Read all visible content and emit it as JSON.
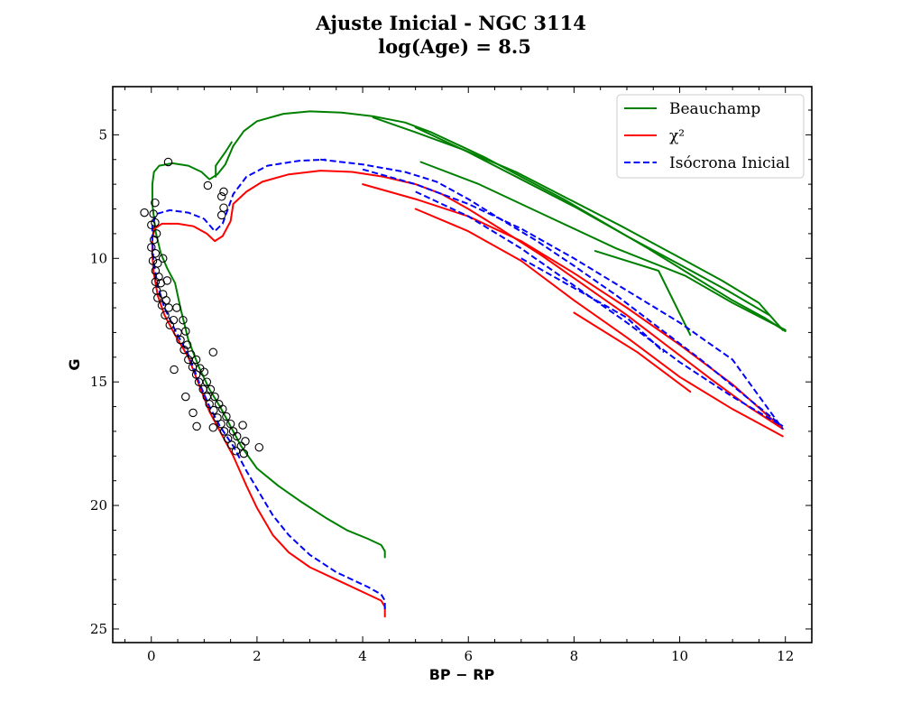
{
  "chart_data": {
    "type": "scatter",
    "title": "Ajuste Inicial - NGC 3114",
    "subtitle": "log(Age) = 8.5",
    "xlabel": "BP − RP",
    "ylabel": "G",
    "xlim": [
      -0.73,
      12.5
    ],
    "ylim": [
      25.55,
      3.05
    ],
    "y_inverted": true,
    "xticks": [
      "0",
      "2",
      "4",
      "6",
      "8",
      "10",
      "12"
    ],
    "yticks": [
      "5",
      "10",
      "15",
      "20",
      "25"
    ],
    "legend_position": "top-right",
    "grid": false,
    "series": [
      {
        "name": "Beauchamp",
        "color": "#008000",
        "dash": "solid",
        "segments": [
          [
            [
              4.42,
              22.1
            ],
            [
              4.42,
              21.85
            ],
            [
              4.35,
              21.6
            ],
            [
              4.1,
              21.35
            ],
            [
              3.7,
              21.0
            ],
            [
              3.3,
              20.5
            ],
            [
              2.8,
              19.8
            ],
            [
              2.4,
              19.2
            ],
            [
              2.0,
              18.5
            ],
            [
              1.7,
              17.6
            ],
            [
              1.5,
              16.8
            ],
            [
              1.3,
              16.0
            ],
            [
              1.1,
              15.3
            ],
            [
              0.9,
              14.4
            ],
            [
              0.7,
              13.3
            ],
            [
              0.55,
              12.0
            ],
            [
              0.45,
              11.0
            ],
            [
              0.3,
              10.4
            ],
            [
              0.18,
              9.8
            ],
            [
              0.08,
              8.9
            ],
            [
              0.02,
              7.8
            ],
            [
              0.02,
              7.0
            ],
            [
              0.05,
              6.5
            ],
            [
              0.15,
              6.25
            ],
            [
              0.4,
              6.15
            ],
            [
              0.7,
              6.25
            ],
            [
              0.95,
              6.5
            ],
            [
              1.1,
              6.8
            ],
            [
              1.25,
              6.6
            ],
            [
              1.4,
              6.2
            ],
            [
              1.55,
              5.45
            ]
          ],
          [
            [
              1.22,
              6.7
            ],
            [
              1.22,
              6.25
            ],
            [
              1.4,
              5.7
            ],
            [
              1.52,
              5.3
            ]
          ],
          [
            [
              1.55,
              5.45
            ],
            [
              1.75,
              4.85
            ],
            [
              2.0,
              4.45
            ],
            [
              2.5,
              4.15
            ],
            [
              3.0,
              4.05
            ],
            [
              3.6,
              4.1
            ],
            [
              4.2,
              4.25
            ],
            [
              4.8,
              4.5
            ],
            [
              5.3,
              4.9
            ],
            [
              5.8,
              5.4
            ],
            [
              6.3,
              5.9
            ],
            [
              7.0,
              6.7
            ],
            [
              7.8,
              7.6
            ],
            [
              8.6,
              8.6
            ],
            [
              9.4,
              9.6
            ],
            [
              10.2,
              10.65
            ],
            [
              11.0,
              11.7
            ],
            [
              11.6,
              12.4
            ],
            [
              12.0,
              12.95
            ]
          ],
          [
            [
              4.2,
              4.3
            ],
            [
              5.0,
              4.9
            ],
            [
              5.9,
              5.6
            ],
            [
              6.9,
              6.5
            ],
            [
              7.9,
              7.6
            ],
            [
              8.9,
              8.7
            ],
            [
              9.9,
              9.85
            ],
            [
              10.8,
              10.9
            ],
            [
              11.5,
              11.8
            ],
            [
              11.95,
              12.9
            ]
          ],
          [
            [
              5.0,
              4.7
            ],
            [
              6.0,
              5.7
            ],
            [
              7.0,
              6.8
            ],
            [
              8.0,
              7.9
            ],
            [
              9.0,
              9.1
            ],
            [
              10.0,
              10.25
            ],
            [
              10.9,
              11.3
            ],
            [
              11.7,
              12.3
            ]
          ],
          [
            [
              5.1,
              6.1
            ],
            [
              6.2,
              7.0
            ],
            [
              7.4,
              8.2
            ],
            [
              8.8,
              9.6
            ],
            [
              10.1,
              10.7
            ],
            [
              11.0,
              11.8
            ],
            [
              12.0,
              12.9
            ]
          ],
          [
            [
              8.4,
              9.7
            ],
            [
              9.6,
              10.5
            ],
            [
              10.2,
              13.1
            ]
          ]
        ]
      },
      {
        "name": "χ²",
        "color": "#ff0000",
        "dash": "solid",
        "segments": [
          [
            [
              4.42,
              24.5
            ],
            [
              4.42,
              24.1
            ],
            [
              4.35,
              23.85
            ],
            [
              4.1,
              23.6
            ],
            [
              3.5,
              23.0
            ],
            [
              3.0,
              22.5
            ],
            [
              2.6,
              21.9
            ],
            [
              2.3,
              21.2
            ],
            [
              2.0,
              20.1
            ],
            [
              1.8,
              19.2
            ],
            [
              1.55,
              18.0
            ],
            [
              1.3,
              17.0
            ],
            [
              1.1,
              16.2
            ],
            [
              0.9,
              15.1
            ],
            [
              0.7,
              14.0
            ],
            [
              0.45,
              13.1
            ],
            [
              0.25,
              12.3
            ],
            [
              0.12,
              11.5
            ],
            [
              0.04,
              10.5
            ],
            [
              0.02,
              9.8
            ],
            [
              0.02,
              9.2
            ],
            [
              0.06,
              8.8
            ],
            [
              0.2,
              8.6
            ],
            [
              0.5,
              8.6
            ],
            [
              0.8,
              8.7
            ],
            [
              1.05,
              9.0
            ],
            [
              1.2,
              9.3
            ],
            [
              1.35,
              9.1
            ],
            [
              1.5,
              8.5
            ],
            [
              1.55,
              7.8
            ]
          ],
          [
            [
              1.55,
              7.8
            ],
            [
              1.8,
              7.3
            ],
            [
              2.1,
              6.9
            ],
            [
              2.6,
              6.6
            ],
            [
              3.2,
              6.45
            ],
            [
              3.8,
              6.5
            ],
            [
              4.4,
              6.7
            ],
            [
              5.0,
              7.0
            ],
            [
              5.5,
              7.4
            ],
            [
              6.0,
              8.0
            ],
            [
              6.6,
              8.8
            ],
            [
              7.4,
              9.9
            ],
            [
              8.2,
              11.1
            ],
            [
              9.0,
              12.3
            ],
            [
              9.8,
              13.6
            ],
            [
              10.6,
              14.9
            ],
            [
              11.3,
              16.0
            ],
            [
              11.95,
              16.9
            ]
          ],
          [
            [
              4.0,
              7.0
            ],
            [
              5.0,
              7.6
            ],
            [
              6.0,
              8.3
            ],
            [
              7.0,
              9.3
            ],
            [
              8.0,
              10.6
            ],
            [
              9.0,
              12.0
            ],
            [
              10.0,
              13.5
            ],
            [
              11.0,
              15.1
            ],
            [
              11.95,
              16.9
            ]
          ],
          [
            [
              5.0,
              8.0
            ],
            [
              6.0,
              8.9
            ],
            [
              7.0,
              10.1
            ],
            [
              8.0,
              11.7
            ],
            [
              9.0,
              13.2
            ],
            [
              10.0,
              14.8
            ],
            [
              11.0,
              16.1
            ],
            [
              11.95,
              17.2
            ]
          ],
          [
            [
              8.0,
              12.2
            ],
            [
              9.2,
              13.8
            ],
            [
              10.2,
              15.4
            ]
          ]
        ]
      },
      {
        "name": "Isócrona Inicial",
        "color": "#0000ff",
        "dash": "dashed",
        "segments": [
          [
            [
              4.42,
              24.2
            ],
            [
              4.42,
              23.85
            ],
            [
              4.35,
              23.6
            ],
            [
              4.1,
              23.3
            ],
            [
              3.5,
              22.7
            ],
            [
              3.0,
              22.0
            ],
            [
              2.6,
              21.2
            ],
            [
              2.3,
              20.4
            ],
            [
              2.05,
              19.5
            ],
            [
              1.8,
              18.6
            ],
            [
              1.55,
              17.6
            ],
            [
              1.3,
              16.8
            ],
            [
              1.1,
              16.0
            ],
            [
              0.9,
              15.0
            ],
            [
              0.7,
              13.9
            ],
            [
              0.45,
              12.9
            ],
            [
              0.25,
              12.0
            ],
            [
              0.12,
              11.1
            ],
            [
              0.04,
              10.1
            ],
            [
              0.02,
              9.2
            ],
            [
              0.02,
              8.6
            ],
            [
              0.1,
              8.2
            ],
            [
              0.35,
              8.05
            ],
            [
              0.7,
              8.15
            ],
            [
              1.0,
              8.4
            ],
            [
              1.2,
              8.9
            ],
            [
              1.35,
              8.6
            ],
            [
              1.55,
              7.4
            ],
            [
              1.8,
              6.7
            ],
            [
              2.2,
              6.25
            ],
            [
              2.8,
              6.05
            ],
            [
              3.3,
              6.0
            ]
          ],
          [
            [
              3.2,
              6.0
            ],
            [
              4.0,
              6.2
            ],
            [
              4.8,
              6.5
            ],
            [
              5.4,
              6.9
            ],
            [
              6.0,
              7.6
            ],
            [
              6.6,
              8.4
            ],
            [
              7.3,
              9.3
            ],
            [
              8.0,
              10.3
            ],
            [
              8.8,
              11.5
            ],
            [
              9.6,
              12.8
            ],
            [
              10.4,
              14.1
            ],
            [
              11.2,
              15.5
            ],
            [
              11.95,
              16.8
            ]
          ],
          [
            [
              4.0,
              6.4
            ],
            [
              5.0,
              7.0
            ],
            [
              6.0,
              7.8
            ],
            [
              7.0,
              8.8
            ],
            [
              8.0,
              10.0
            ],
            [
              9.0,
              11.3
            ],
            [
              10.0,
              12.6
            ],
            [
              11.0,
              14.1
            ],
            [
              11.95,
              16.9
            ]
          ],
          [
            [
              5.0,
              7.3
            ],
            [
              6.0,
              8.3
            ],
            [
              7.0,
              9.6
            ],
            [
              8.0,
              11.1
            ],
            [
              9.0,
              12.6
            ],
            [
              10.0,
              14.2
            ],
            [
              11.0,
              15.6
            ],
            [
              11.95,
              16.8
            ]
          ],
          [
            [
              7.0,
              10.0
            ],
            [
              8.0,
              11.2
            ],
            [
              9.0,
              12.4
            ],
            [
              9.7,
              13.8
            ]
          ]
        ]
      }
    ],
    "observed_stars": {
      "marker": "open-circle",
      "color": "#000000",
      "points": [
        [
          0.32,
          6.1
        ],
        [
          1.07,
          7.05
        ],
        [
          1.37,
          7.3
        ],
        [
          1.33,
          7.5
        ],
        [
          0.07,
          7.75
        ],
        [
          1.37,
          7.95
        ],
        [
          -0.13,
          8.15
        ],
        [
          1.33,
          8.25
        ],
        [
          0.04,
          8.2
        ],
        [
          0.07,
          8.55
        ],
        [
          0.0,
          8.65
        ],
        [
          0.1,
          9.0
        ],
        [
          0.05,
          9.25
        ],
        [
          0.0,
          9.55
        ],
        [
          0.08,
          9.8
        ],
        [
          0.03,
          10.1
        ],
        [
          0.12,
          10.2
        ],
        [
          0.08,
          10.5
        ],
        [
          0.14,
          10.75
        ],
        [
          0.08,
          10.95
        ],
        [
          0.18,
          11.0
        ],
        [
          0.1,
          11.3
        ],
        [
          0.22,
          11.45
        ],
        [
          0.12,
          11.6
        ],
        [
          0.28,
          11.7
        ],
        [
          0.2,
          11.9
        ],
        [
          0.33,
          12.0
        ],
        [
          0.26,
          12.3
        ],
        [
          0.48,
          12.0
        ],
        [
          0.42,
          12.5
        ],
        [
          0.35,
          12.7
        ],
        [
          0.6,
          12.5
        ],
        [
          0.5,
          13.0
        ],
        [
          0.65,
          12.95
        ],
        [
          0.55,
          13.3
        ],
        [
          0.68,
          13.5
        ],
        [
          0.62,
          13.7
        ],
        [
          0.75,
          13.9
        ],
        [
          0.7,
          14.1
        ],
        [
          0.85,
          14.1
        ],
        [
          0.78,
          14.4
        ],
        [
          0.92,
          14.45
        ],
        [
          0.85,
          14.7
        ],
        [
          1.0,
          14.6
        ],
        [
          0.9,
          15.0
        ],
        [
          1.05,
          15.0
        ],
        [
          0.98,
          15.3
        ],
        [
          1.12,
          15.3
        ],
        [
          1.05,
          15.6
        ],
        [
          1.2,
          15.6
        ],
        [
          1.1,
          15.9
        ],
        [
          1.28,
          15.9
        ],
        [
          1.18,
          16.15
        ],
        [
          1.35,
          16.1
        ],
        [
          1.25,
          16.45
        ],
        [
          1.42,
          16.4
        ],
        [
          1.32,
          16.7
        ],
        [
          1.5,
          16.7
        ],
        [
          1.38,
          17.0
        ],
        [
          1.55,
          17.0
        ],
        [
          1.45,
          17.3
        ],
        [
          1.62,
          17.2
        ],
        [
          1.52,
          17.55
        ],
        [
          1.7,
          17.6
        ],
        [
          1.6,
          17.8
        ],
        [
          1.75,
          17.9
        ],
        [
          1.73,
          16.75
        ],
        [
          1.78,
          17.4
        ],
        [
          2.04,
          17.65
        ],
        [
          0.43,
          14.5
        ],
        [
          0.65,
          15.6
        ],
        [
          0.79,
          16.25
        ],
        [
          0.86,
          16.8
        ],
        [
          1.17,
          16.85
        ],
        [
          1.17,
          13.8
        ],
        [
          0.22,
          10.0
        ],
        [
          0.3,
          10.9
        ]
      ]
    }
  }
}
